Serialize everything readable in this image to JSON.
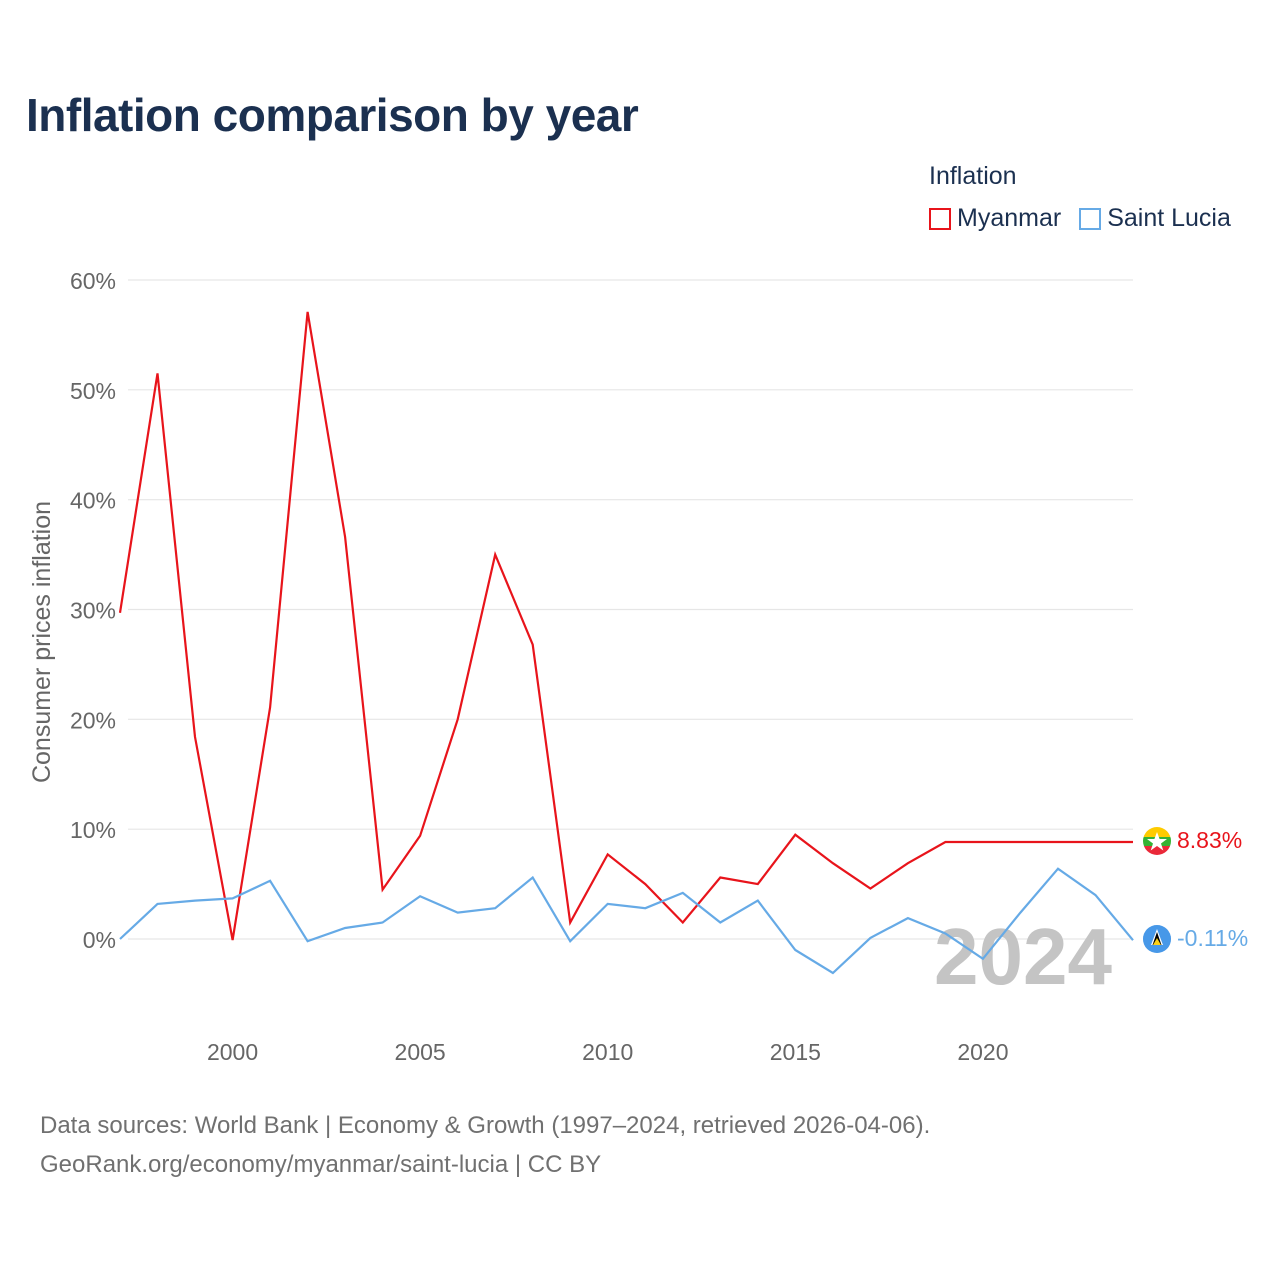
{
  "title": "Inflation comparison by year",
  "legend": {
    "title": "Inflation",
    "items": [
      {
        "label": "Myanmar",
        "color": "#e8141b"
      },
      {
        "label": "Saint Lucia",
        "color": "#66aae6"
      }
    ]
  },
  "watermark_year": "2024",
  "end_labels": {
    "myanmar": "8.83%",
    "saint_lucia": "-0.11%"
  },
  "footer": {
    "line1": "Data sources: World Bank | Economy & Growth (1997–2024, retrieved 2026-04-06).",
    "line2": "GeoRank.org/economy/myanmar/saint-lucia | CC BY"
  },
  "chart_data": {
    "type": "line",
    "title": "Inflation comparison by year",
    "xlabel": "",
    "ylabel": "Consumer prices inflation",
    "xlim": [
      1997,
      2024
    ],
    "ylim": [
      -8,
      60
    ],
    "yticks": [
      0,
      10,
      20,
      30,
      40,
      50,
      60
    ],
    "ytick_labels": [
      "0%",
      "10%",
      "20%",
      "30%",
      "40%",
      "50%",
      "60%"
    ],
    "xticks": [
      2000,
      2005,
      2010,
      2015,
      2020
    ],
    "xtick_labels": [
      "2000",
      "2005",
      "2010",
      "2015",
      "2020"
    ],
    "grid": true,
    "legend_position": "top-right",
    "x": [
      1997,
      1998,
      1999,
      2000,
      2001,
      2002,
      2003,
      2004,
      2005,
      2006,
      2007,
      2008,
      2009,
      2010,
      2011,
      2012,
      2013,
      2014,
      2015,
      2016,
      2017,
      2018,
      2019,
      2020,
      2021,
      2022,
      2023,
      2024
    ],
    "series": [
      {
        "name": "Myanmar",
        "color": "#e8141b",
        "values": [
          29.7,
          51.5,
          18.4,
          -0.1,
          21.1,
          57.1,
          36.6,
          4.5,
          9.4,
          20.0,
          35.0,
          26.8,
          1.5,
          7.7,
          5.0,
          1.5,
          5.6,
          5.0,
          9.5,
          6.9,
          4.6,
          6.9,
          8.83,
          8.83,
          8.83,
          8.83,
          8.83,
          8.83
        ]
      },
      {
        "name": "Saint Lucia",
        "color": "#66aae6",
        "values": [
          0.0,
          3.2,
          3.5,
          3.7,
          5.3,
          -0.2,
          1.0,
          1.5,
          3.9,
          2.4,
          2.8,
          5.6,
          -0.2,
          3.2,
          2.8,
          4.2,
          1.5,
          3.5,
          -1.0,
          -3.1,
          0.1,
          1.9,
          0.5,
          -1.8,
          2.4,
          6.4,
          4.0,
          -0.11
        ]
      }
    ]
  }
}
